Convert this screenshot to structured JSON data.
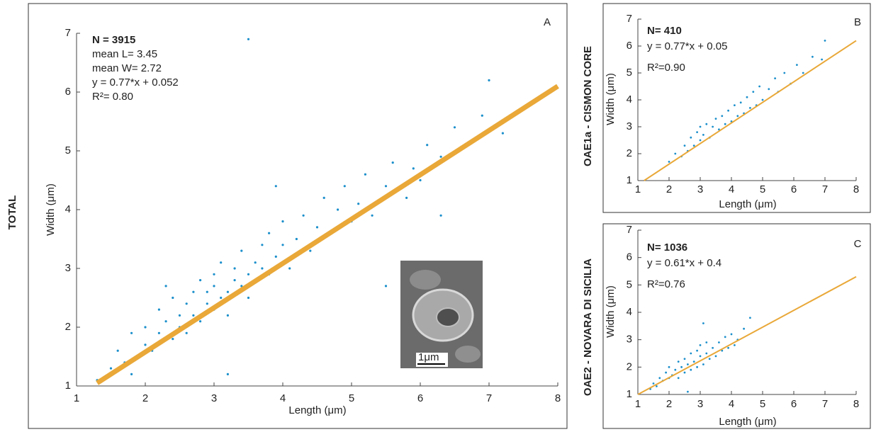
{
  "chart_data": [
    {
      "type": "scatter",
      "panel": "A",
      "side_label": "TOTAL",
      "x_label": "Length (μm)",
      "y_label": "Width (μm)",
      "annotations": [
        "N = 3915",
        "mean L= 3.45",
        "mean W= 2.72",
        "y = 0.77*x + 0.052",
        "R²= 0.80"
      ],
      "inset": {
        "scale_label": "1μm"
      },
      "xlim": [
        1,
        8
      ],
      "ylim": [
        1,
        7
      ],
      "xticks": [
        1,
        2,
        3,
        4,
        5,
        6,
        7,
        8
      ],
      "yticks": [
        1,
        2,
        3,
        4,
        5,
        6,
        7
      ],
      "series": [
        {
          "color": "#1b8fcb",
          "x": [
            1.5,
            1.6,
            1.7,
            1.8,
            1.9,
            2.0,
            2.0,
            2.1,
            2.2,
            2.2,
            2.3,
            2.4,
            2.4,
            2.5,
            2.5,
            2.6,
            2.6,
            2.7,
            2.7,
            2.8,
            2.8,
            2.9,
            2.9,
            3.0,
            3.0,
            3.0,
            3.1,
            3.1,
            3.2,
            3.2,
            3.3,
            3.3,
            3.4,
            3.4,
            3.5,
            3.5,
            3.6,
            3.6,
            3.7,
            3.7,
            3.8,
            3.8,
            3.9,
            4.0,
            4.0,
            4.1,
            4.2,
            4.3,
            4.4,
            4.5,
            4.6,
            4.7,
            4.8,
            4.9,
            5.0,
            5.1,
            5.2,
            5.3,
            5.5,
            5.6,
            5.8,
            5.9,
            6.0,
            6.1,
            6.3,
            6.5,
            6.7,
            6.9,
            7.0,
            7.2,
            3.5,
            1.3,
            1.8,
            2.3,
            3.9,
            5.5,
            3.2,
            6.3
          ],
          "values": [
            1.3,
            1.6,
            1.4,
            1.9,
            1.5,
            2.0,
            1.7,
            1.6,
            2.3,
            1.9,
            2.1,
            1.8,
            2.5,
            2.2,
            2.0,
            2.4,
            1.9,
            2.6,
            2.2,
            2.1,
            2.8,
            2.4,
            2.6,
            2.3,
            2.9,
            2.7,
            2.5,
            3.1,
            2.6,
            2.2,
            2.8,
            3.0,
            2.7,
            3.3,
            2.9,
            2.5,
            3.1,
            2.8,
            3.4,
            3.0,
            2.9,
            3.6,
            3.2,
            3.4,
            3.8,
            3.0,
            3.5,
            3.9,
            3.3,
            3.7,
            4.2,
            3.6,
            4.0,
            4.4,
            3.8,
            4.1,
            4.6,
            3.9,
            4.4,
            4.8,
            4.2,
            4.7,
            4.5,
            5.1,
            4.9,
            5.4,
            5.1,
            5.6,
            6.2,
            5.3,
            6.9,
            1.1,
            1.2,
            2.7,
            4.4,
            2.7,
            1.2,
            3.9
          ]
        },
        {
          "type": "line",
          "color": "#e9a838",
          "x": [
            1.3,
            8
          ],
          "values": [
            1.05,
            6.1
          ]
        }
      ]
    },
    {
      "type": "scatter",
      "panel": "B",
      "side_label": "OAE1a - CISMON CORE",
      "x_label": "Length (μm)",
      "y_label": "Width (μm)",
      "annotations": [
        "N= 410",
        "y = 0.77*x + 0.05",
        "R²=0.90"
      ],
      "xlim": [
        1,
        8
      ],
      "ylim": [
        1,
        7
      ],
      "xticks": [
        1,
        2,
        3,
        4,
        5,
        6,
        7,
        8
      ],
      "yticks": [
        1,
        2,
        3,
        4,
        5,
        6,
        7
      ],
      "series": [
        {
          "color": "#1b8fcb",
          "x": [
            2.0,
            2.2,
            2.4,
            2.5,
            2.6,
            2.7,
            2.8,
            2.9,
            3.0,
            3.0,
            3.1,
            3.2,
            3.3,
            3.4,
            3.5,
            3.6,
            3.7,
            3.8,
            3.9,
            4.0,
            4.1,
            4.2,
            4.3,
            4.4,
            4.5,
            4.6,
            4.7,
            4.8,
            4.9,
            5.0,
            5.2,
            5.4,
            5.5,
            5.7,
            5.9,
            6.1,
            6.3,
            6.6,
            6.9,
            7.0
          ],
          "values": [
            1.7,
            2.0,
            1.9,
            2.3,
            2.1,
            2.6,
            2.3,
            2.8,
            2.5,
            3.0,
            2.7,
            3.1,
            2.6,
            3.0,
            3.3,
            2.9,
            3.4,
            3.1,
            3.6,
            3.2,
            3.8,
            3.4,
            3.9,
            3.5,
            4.1,
            3.7,
            4.3,
            3.8,
            4.5,
            4.0,
            4.4,
            4.8,
            4.3,
            5.0,
            4.6,
            5.3,
            5.0,
            5.6,
            5.5,
            6.2
          ]
        },
        {
          "type": "line",
          "color": "#e9a838",
          "x": [
            1.2,
            8
          ],
          "values": [
            1.0,
            6.2
          ]
        }
      ]
    },
    {
      "type": "scatter",
      "panel": "C",
      "side_label": "OAE2 - NOVARA DI SICILIA",
      "x_label": "Length (μm)",
      "y_label": "Width (μm)",
      "annotations": [
        "N= 1036",
        "y = 0.61*x + 0.4",
        "R²=0.76"
      ],
      "xlim": [
        1,
        8
      ],
      "ylim": [
        1,
        7
      ],
      "xticks": [
        1,
        2,
        3,
        4,
        5,
        6,
        7,
        8
      ],
      "yticks": [
        1,
        2,
        3,
        4,
        5,
        6,
        7
      ],
      "series": [
        {
          "color": "#1b8fcb",
          "x": [
            1.4,
            1.5,
            1.6,
            1.7,
            1.8,
            1.9,
            2.0,
            2.0,
            2.1,
            2.2,
            2.3,
            2.3,
            2.4,
            2.5,
            2.5,
            2.6,
            2.7,
            2.7,
            2.8,
            2.9,
            2.9,
            3.0,
            3.0,
            3.1,
            3.2,
            3.2,
            3.3,
            3.4,
            3.5,
            3.6,
            3.7,
            3.8,
            3.9,
            4.0,
            4.1,
            4.2,
            4.4,
            4.6,
            2.6,
            3.1
          ],
          "values": [
            1.2,
            1.4,
            1.3,
            1.6,
            1.5,
            1.8,
            1.6,
            2.0,
            1.7,
            1.9,
            2.2,
            1.6,
            2.0,
            2.3,
            1.8,
            2.1,
            2.5,
            1.9,
            2.2,
            2.6,
            2.0,
            2.4,
            2.8,
            2.1,
            2.5,
            2.9,
            2.3,
            2.7,
            2.4,
            2.9,
            2.6,
            3.1,
            2.7,
            3.2,
            2.8,
            3.0,
            3.4,
            3.8,
            1.1,
            3.6
          ]
        },
        {
          "type": "line",
          "color": "#e9a838",
          "x": [
            1,
            8
          ],
          "values": [
            1.0,
            5.3
          ]
        }
      ]
    }
  ]
}
